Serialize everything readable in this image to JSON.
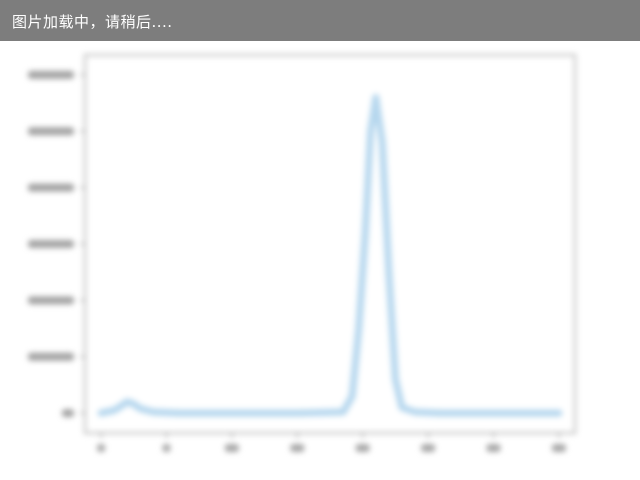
{
  "loading_message": "图片加载中，请稍后....",
  "chart_data": {
    "type": "line",
    "title": "",
    "xlabel": "",
    "ylabel": "",
    "x_ticks": [
      0,
      5,
      10,
      15,
      20,
      25,
      30,
      35
    ],
    "y_ticks": [
      0,
      1,
      2,
      3,
      4,
      5,
      6
    ],
    "xlim": [
      -1,
      36
    ],
    "ylim": [
      -0.3,
      6.3
    ],
    "series": [
      {
        "color": "#9ec9e8",
        "x": [
          0,
          1,
          1.5,
          2,
          2.5,
          3,
          4,
          6,
          10,
          15,
          18.5,
          19.2,
          19.7,
          20.2,
          20.6,
          21,
          21.5,
          22,
          22.5,
          23,
          24,
          26,
          30,
          35
        ],
        "y": [
          0,
          0.05,
          0.12,
          0.2,
          0.16,
          0.08,
          0.02,
          0.0,
          0.0,
          0.0,
          0.02,
          0.3,
          1.5,
          3.2,
          5.0,
          5.6,
          4.8,
          2.5,
          0.6,
          0.1,
          0.02,
          0.0,
          0.0,
          0.0
        ]
      }
    ]
  }
}
